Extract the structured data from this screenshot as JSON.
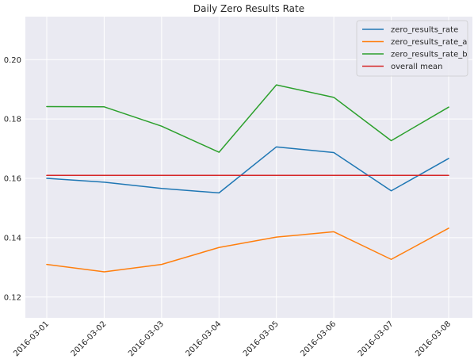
{
  "chart_data": {
    "type": "line",
    "title": "Daily Zero Results Rate",
    "xlabel": "",
    "ylabel": "",
    "categories": [
      "2016-03-01",
      "2016-03-02",
      "2016-03-03",
      "2016-03-04",
      "2016-03-05",
      "2016-03-06",
      "2016-03-07",
      "2016-03-08"
    ],
    "ylim": [
      0.113,
      0.2145
    ],
    "yticks": [
      0.12,
      0.14,
      0.16,
      0.18,
      0.2
    ],
    "ytick_labels": [
      "0.12",
      "0.14",
      "0.16",
      "0.18",
      "0.20"
    ],
    "grid": true,
    "legend_position": "top-right",
    "series": [
      {
        "name": "zero_results_rate",
        "color": "#1f77b4",
        "values": [
          0.16,
          0.1587,
          0.1566,
          0.1551,
          0.1706,
          0.1687,
          0.1558,
          0.1667
        ]
      },
      {
        "name": "zero_results_rate_a",
        "color": "#ff7f0e",
        "values": [
          0.131,
          0.1285,
          0.131,
          0.1367,
          0.1402,
          0.142,
          0.1327,
          0.1432
        ]
      },
      {
        "name": "zero_results_rate_b",
        "color": "#2ca02c",
        "values": [
          0.1842,
          0.1841,
          0.1776,
          0.1688,
          0.1915,
          0.1873,
          0.1727,
          0.184
        ]
      },
      {
        "name": "overall mean",
        "color": "#d62728",
        "values": [
          0.161,
          0.161,
          0.161,
          0.161,
          0.161,
          0.161,
          0.161,
          0.161
        ]
      }
    ]
  }
}
